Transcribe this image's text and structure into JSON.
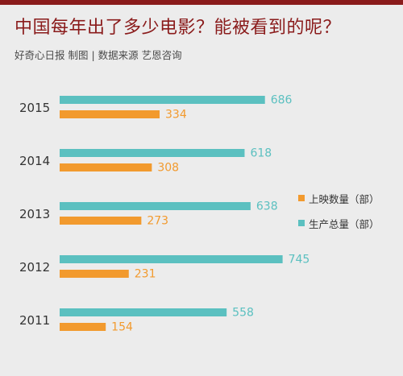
{
  "title": "中国每年出了多少电影？能被看到的呢？",
  "subtitle": "好奇心日报 制图 | 数据来源 艺恩咨询",
  "colors": {
    "accent": "#8a1b1b",
    "produced": "#5bc0c0",
    "screened": "#f29a2e"
  },
  "chart_data": {
    "type": "bar",
    "orientation": "horizontal",
    "categories": [
      "2015",
      "2014",
      "2013",
      "2012",
      "2011"
    ],
    "series": [
      {
        "name": "生产总量（部）",
        "values": [
          686,
          618,
          638,
          745,
          558
        ]
      },
      {
        "name": "上映数量（部）",
        "values": [
          334,
          308,
          273,
          231,
          154
        ]
      }
    ],
    "legend_position": "right",
    "grid": false
  },
  "legend": [
    {
      "label": "上映数量（部）",
      "color": "#f29a2e"
    },
    {
      "label": "生产总量（部）",
      "color": "#5bc0c0"
    }
  ]
}
